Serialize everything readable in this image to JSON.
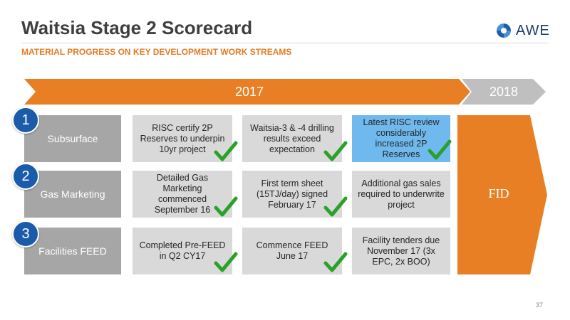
{
  "header": {
    "title": "Waitsia Stage 2 Scorecard",
    "subtitle": "MATERIAL PROGRESS ON KEY DEVELOPMENT WORK STREAMS",
    "logo_text": "AWE"
  },
  "timeline": {
    "year_2017": "2017",
    "year_2018": "2018"
  },
  "rows": [
    {
      "number": "1",
      "label": "Subsurface",
      "cells": [
        {
          "text": "RISC certify 2P Reserves to underpin 10yr project",
          "complete": true
        },
        {
          "text": "Waitsia-3 & -4 drilling results exceed expectation",
          "complete": true
        },
        {
          "text": "Latest RISC review considerably increased 2P Reserves",
          "complete": true
        }
      ]
    },
    {
      "number": "2",
      "label": "Gas Marketing",
      "cells": [
        {
          "text": "Detailed Gas Marketing commenced September 16",
          "complete": true
        },
        {
          "text": "First term sheet (15TJ/day) signed February 17",
          "complete": true
        },
        {
          "text": "Additional gas sales required to underwrite project",
          "complete": false
        }
      ]
    },
    {
      "number": "3",
      "label": "Facilities FEED",
      "cells": [
        {
          "text": "Completed Pre-FEED in Q2 CY17",
          "complete": true
        },
        {
          "text": "Commence FEED June 17",
          "complete": true
        },
        {
          "text": "Facility tenders due November 17 (3x EPC, 2x BOO)",
          "complete": false
        }
      ]
    }
  ],
  "milestone": "FID",
  "page_number": "37",
  "colors": {
    "orange": "#e87f24",
    "gray_arrow": "#bfbfbf",
    "cell_gray": "#d9d9d9",
    "label_gray": "#a6a6a6",
    "highlight_blue": "#6fb9ee",
    "badge_blue": "#1b5caa",
    "check_green": "#2aa12a"
  }
}
